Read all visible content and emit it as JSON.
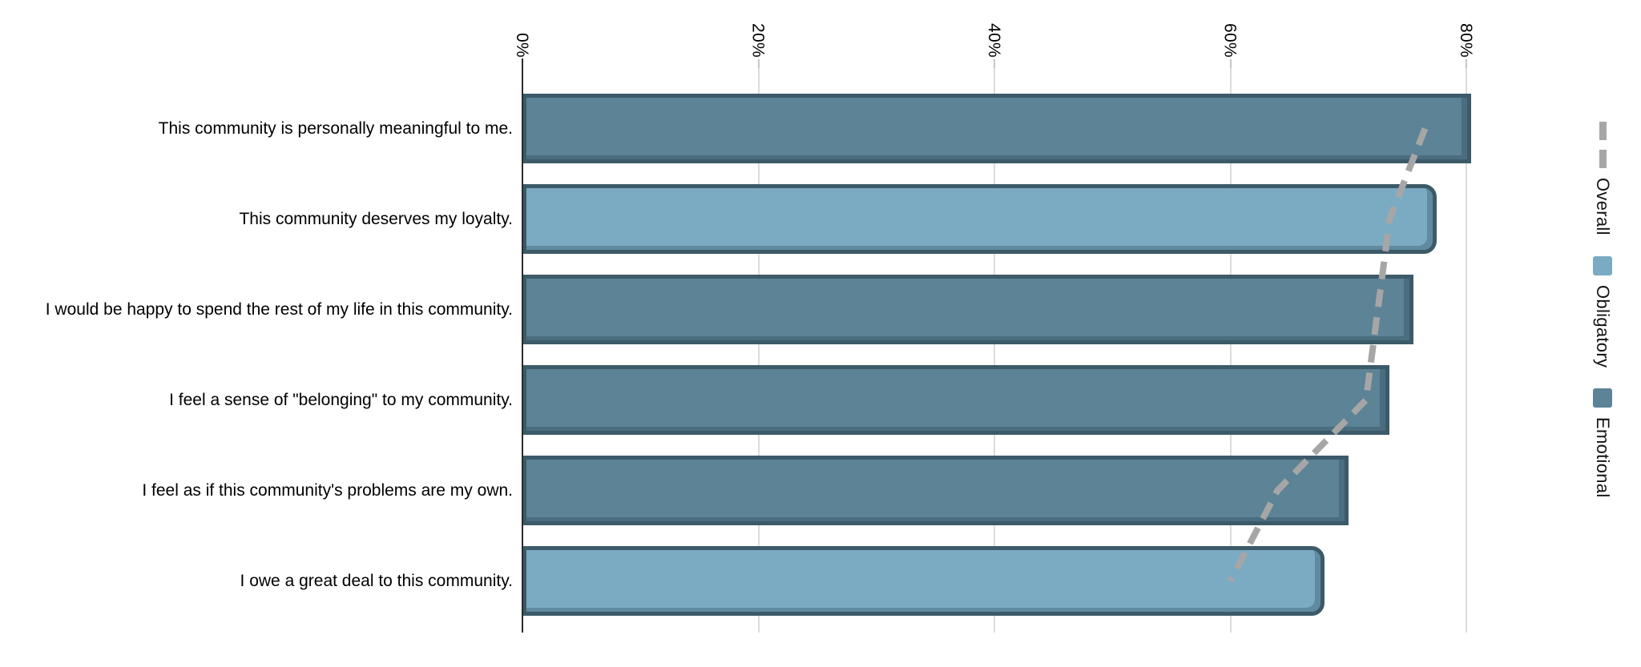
{
  "chart_data": {
    "type": "bar",
    "orientation": "horizontal",
    "title": "",
    "xlabel": "",
    "ylabel": "",
    "x_axis": {
      "tick_labels": [
        "0%",
        "20%",
        "40%",
        "60%",
        "80%"
      ],
      "tick_values": [
        0,
        20,
        40,
        60,
        80
      ],
      "min": 0,
      "max": 80,
      "grid": true,
      "label_rotation_deg": 90
    },
    "categories": [
      "This community is personally meaningful to me.",
      "This community deserves my loyalty.",
      "I would be happy to spend the rest of my life in this community.",
      "I feel a sense of \"belonging\" to my community.",
      "I feel as if this community's problems are my own.",
      "I owe a great deal to this community."
    ],
    "bars": [
      {
        "series": "Emotional",
        "value": 80.4
      },
      {
        "series": "Obligatory",
        "value": 77.5
      },
      {
        "series": "Emotional",
        "value": 75.5
      },
      {
        "series": "Emotional",
        "value": 73.5
      },
      {
        "series": "Emotional",
        "value": 70
      },
      {
        "series": "Obligatory",
        "value": 68
      }
    ],
    "overall_line": {
      "name": "Overall",
      "style": "dashed",
      "color": "#a6a6a6",
      "values": [
        76.5,
        73.5,
        72.5,
        71.5,
        64,
        60
      ]
    },
    "series_colors": {
      "Emotional": "#5c8396",
      "Obligatory": "#7aabc2",
      "bar_border": "#3c5a68"
    },
    "legend": {
      "position": "right",
      "items": [
        {
          "label": "Overall",
          "symbol": "dashed-line",
          "color": "#a6a6a6"
        },
        {
          "label": "Obligatory",
          "symbol": "square",
          "color": "#7aabc2"
        },
        {
          "label": "Emotional",
          "symbol": "square",
          "color": "#5c8396"
        }
      ]
    }
  }
}
